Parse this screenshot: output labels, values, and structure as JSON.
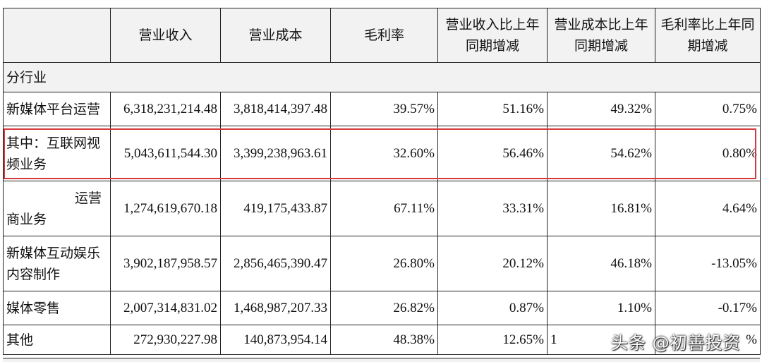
{
  "headers": [
    "",
    "营业收入",
    "营业成本",
    "毛利率",
    "营业收入比上年同期增减",
    "营业成本比上年同期增减",
    "毛利率比上年同期增减"
  ],
  "section_label": "分行业",
  "rows": [
    {
      "label": "新媒体平台运营",
      "label_lines": [
        "新媒体平台运营"
      ],
      "revenue": "6,318,231,214.48",
      "cost": "3,818,414,397.48",
      "margin": "39.57%",
      "rev_change": "51.16%",
      "cost_change": "49.32%",
      "margin_change": "0.75%"
    },
    {
      "label": "其中：互联网视频业务",
      "label_lines": [
        "其中：互联网视",
        "频业务"
      ],
      "revenue": "5,043,611,544.30",
      "cost": "3,399,238,963.61",
      "margin": "32.60%",
      "rev_change": "56.46%",
      "cost_change": "54.62%",
      "margin_change": "0.80%"
    },
    {
      "label": "运营商业务",
      "label_lines": [
        "运营",
        "商业务"
      ],
      "revenue": "1,274,619,670.18",
      "cost": "419,175,433.87",
      "margin": "67.11%",
      "rev_change": "33.31%",
      "cost_change": "16.81%",
      "margin_change": "4.64%"
    },
    {
      "label": "新媒体互动娱乐内容制作",
      "label_lines": [
        "新媒体互动娱乐",
        "内容制作"
      ],
      "revenue": "3,902,187,958.57",
      "cost": "2,856,465,390.47",
      "margin": "26.80%",
      "rev_change": "20.12%",
      "cost_change": "46.18%",
      "margin_change": "-13.05%"
    },
    {
      "label": "媒体零售",
      "label_lines": [
        "媒体零售"
      ],
      "revenue": "2,007,314,831.02",
      "cost": "1,468,987,207.33",
      "margin": "26.82%",
      "rev_change": "0.87%",
      "cost_change": "1.10%",
      "margin_change": "-0.17%"
    },
    {
      "label": "其他",
      "label_lines": [
        "其他"
      ],
      "revenue": "272,930,227.98",
      "cost": "140,873,954.14",
      "margin": "48.38%",
      "rev_change": "12.65%",
      "cost_change": "1",
      "margin_change": "%"
    }
  ],
  "highlight_color": "#d43a3a",
  "watermark": "头条 @初善投资"
}
